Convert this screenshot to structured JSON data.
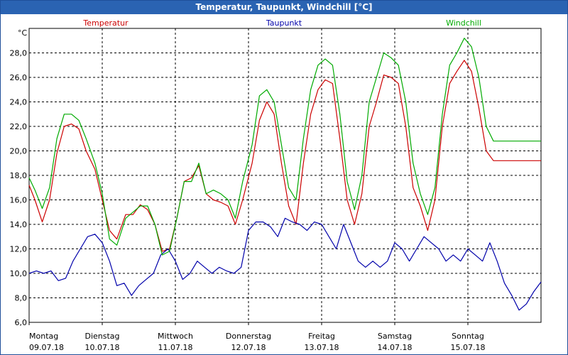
{
  "window": {
    "title": "Temperatur, Taupunkt, Windchill [°C]"
  },
  "chart_data": {
    "type": "line",
    "title": "Temperatur, Taupunkt, Windchill [°C]",
    "ylabel": "°C",
    "ylim": [
      6,
      30
    ],
    "yticks": [
      "6,0",
      "8,0",
      "10,0",
      "12,0",
      "14,0",
      "16,0",
      "18,0",
      "20,0",
      "22,0",
      "24,0",
      "26,0",
      "28,0"
    ],
    "xlim": [
      0,
      7
    ],
    "days": [
      {
        "weekday": "Montag",
        "date": "09.07.18"
      },
      {
        "weekday": "Dienstag",
        "date": "10.07.18"
      },
      {
        "weekday": "Mittwoch",
        "date": "11.07.18"
      },
      {
        "weekday": "Donnerstag",
        "date": "12.07.18"
      },
      {
        "weekday": "Freitag",
        "date": "13.07.18"
      },
      {
        "weekday": "Samstag",
        "date": "14.07.18"
      },
      {
        "weekday": "Sonntag",
        "date": "15.07.18"
      }
    ],
    "grid": true,
    "series": [
      {
        "name": "Temperatur",
        "color": "#cc0000",
        "x": [
          0,
          0.08,
          0.18,
          0.28,
          0.38,
          0.48,
          0.58,
          0.68,
          0.78,
          0.9,
          1.0,
          1.1,
          1.2,
          1.32,
          1.42,
          1.52,
          1.62,
          1.72,
          1.82,
          1.92,
          2.02,
          2.12,
          2.22,
          2.32,
          2.42,
          2.52,
          2.62,
          2.72,
          2.82,
          2.92,
          3.05,
          3.15,
          3.25,
          3.35,
          3.45,
          3.55,
          3.65,
          3.75,
          3.85,
          3.95,
          4.05,
          4.15,
          4.25,
          4.35,
          4.45,
          4.55,
          4.65,
          4.75,
          4.85,
          4.95,
          5.05,
          5.15,
          5.25,
          5.35,
          5.45,
          5.55,
          5.65,
          5.75,
          5.85,
          5.95,
          6.05,
          6.15,
          6.25,
          6.35,
          6.45,
          6.55,
          6.65,
          6.75,
          6.85,
          6.95,
          7.0
        ],
        "y": [
          17.2,
          16.0,
          14.2,
          16.0,
          19.8,
          22.0,
          22.2,
          21.8,
          20.0,
          18.5,
          16.0,
          13.5,
          12.8,
          14.8,
          14.8,
          15.6,
          15.2,
          14.0,
          11.8,
          12.0,
          14.5,
          17.5,
          17.8,
          18.8,
          16.5,
          16.0,
          15.8,
          15.5,
          14.0,
          16.0,
          19.0,
          22.5,
          24.0,
          23.0,
          19.0,
          15.5,
          14.0,
          19.0,
          23.0,
          25.0,
          25.8,
          25.5,
          21.0,
          16.0,
          14.0,
          16.5,
          22.0,
          24.0,
          26.2,
          26.0,
          25.5,
          22.0,
          17.0,
          15.5,
          13.5,
          16.0,
          22.0,
          25.5,
          26.5,
          27.4,
          26.5,
          23.5,
          20.0,
          19.2,
          19.2,
          19.2,
          19.2,
          19.2,
          19.2,
          19.2,
          19.2
        ]
      },
      {
        "name": "Taupunkt",
        "color": "#0000aa",
        "x": [
          0,
          0.1,
          0.2,
          0.3,
          0.4,
          0.5,
          0.6,
          0.7,
          0.8,
          0.9,
          1.0,
          1.1,
          1.2,
          1.3,
          1.4,
          1.5,
          1.6,
          1.7,
          1.8,
          1.9,
          2.0,
          2.1,
          2.2,
          2.3,
          2.4,
          2.5,
          2.6,
          2.7,
          2.8,
          2.9,
          3.0,
          3.1,
          3.2,
          3.3,
          3.4,
          3.5,
          3.6,
          3.7,
          3.8,
          3.9,
          4.0,
          4.1,
          4.2,
          4.3,
          4.4,
          4.5,
          4.6,
          4.7,
          4.8,
          4.9,
          5.0,
          5.1,
          5.2,
          5.3,
          5.4,
          5.5,
          5.6,
          5.7,
          5.8,
          5.9,
          6.0,
          6.1,
          6.2,
          6.3,
          6.4,
          6.5,
          6.6,
          6.7,
          6.8,
          6.9,
          7.0
        ],
        "y": [
          10.0,
          10.2,
          10.0,
          10.2,
          9.4,
          9.6,
          11.0,
          12.0,
          13.0,
          13.2,
          12.5,
          11.0,
          9.0,
          9.2,
          8.2,
          9.0,
          9.5,
          10.0,
          11.5,
          12.0,
          11.0,
          9.5,
          10.0,
          11.0,
          10.5,
          10.0,
          10.5,
          10.2,
          10.0,
          10.5,
          13.5,
          14.2,
          14.2,
          13.8,
          13.0,
          14.5,
          14.2,
          14.0,
          13.5,
          14.2,
          14.0,
          13.0,
          12.0,
          14.0,
          12.5,
          11.0,
          10.5,
          11.0,
          10.5,
          11.0,
          12.5,
          12.0,
          11.0,
          12.0,
          13.0,
          12.5,
          12.0,
          11.0,
          11.5,
          11.0,
          12.0,
          11.5,
          11.0,
          12.5,
          11.0,
          9.2,
          8.2,
          7.0,
          7.5,
          8.5,
          9.3
        ]
      },
      {
        "name": "Windchill",
        "color": "#00aa00",
        "x": [
          0,
          0.08,
          0.18,
          0.28,
          0.38,
          0.48,
          0.58,
          0.68,
          0.78,
          0.9,
          1.0,
          1.1,
          1.2,
          1.32,
          1.42,
          1.52,
          1.62,
          1.72,
          1.82,
          1.92,
          2.02,
          2.12,
          2.22,
          2.32,
          2.42,
          2.52,
          2.62,
          2.72,
          2.82,
          2.92,
          3.05,
          3.15,
          3.25,
          3.35,
          3.45,
          3.55,
          3.65,
          3.75,
          3.85,
          3.95,
          4.05,
          4.15,
          4.25,
          4.35,
          4.45,
          4.55,
          4.65,
          4.75,
          4.85,
          4.95,
          5.05,
          5.15,
          5.25,
          5.35,
          5.45,
          5.55,
          5.65,
          5.75,
          5.85,
          5.95,
          6.05,
          6.15,
          6.25,
          6.35,
          6.45,
          6.55,
          6.65,
          6.75,
          6.85,
          6.95,
          7.0
        ],
        "y": [
          17.8,
          16.8,
          15.3,
          17.0,
          21.0,
          23.0,
          23.0,
          22.5,
          21.0,
          19.0,
          16.5,
          12.8,
          12.3,
          14.5,
          15.0,
          15.5,
          15.5,
          14.0,
          11.5,
          11.8,
          14.5,
          17.5,
          17.5,
          19.0,
          16.5,
          16.8,
          16.5,
          16.0,
          14.5,
          17.5,
          20.5,
          24.5,
          25.0,
          24.0,
          20.5,
          17.0,
          16.0,
          21.0,
          25.0,
          27.0,
          27.5,
          27.0,
          23.0,
          17.5,
          15.2,
          18.0,
          24.0,
          26.0,
          28.0,
          27.6,
          27.0,
          24.0,
          19.0,
          16.5,
          14.8,
          17.0,
          23.0,
          27.0,
          28.0,
          29.2,
          28.5,
          26.0,
          22.0,
          20.8,
          20.8,
          20.8,
          20.8,
          20.8,
          20.8,
          20.8,
          20.8
        ]
      }
    ]
  }
}
